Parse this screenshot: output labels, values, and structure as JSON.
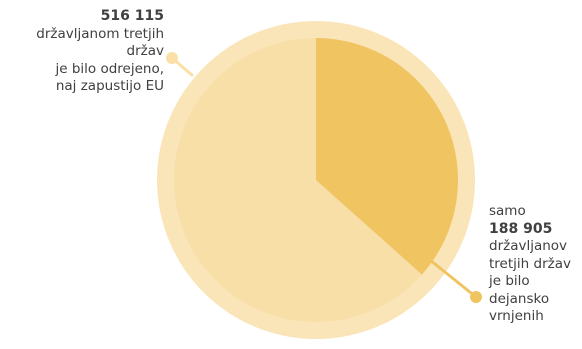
{
  "colors": {
    "outer_ring": "#fae5b8",
    "rest_slice": "#f8dfa7",
    "highlight_slice": "#efc461",
    "leader_line": "#fae0a6",
    "dot_left": "#fae0a6",
    "dot_right": "#efc461",
    "text": "#404040"
  },
  "labels": {
    "left": {
      "number": "516 115",
      "lines": [
        "državljanom tretjih",
        "držav",
        "je bilo odrejeno,",
        "naj zapustijo EU"
      ]
    },
    "right": {
      "prefix": "samo",
      "number": "188 905",
      "lines": [
        "državljanov",
        "tretjih držav",
        "je bilo",
        "dejansko",
        "vrnjenih"
      ]
    }
  },
  "chart_data": {
    "type": "pie",
    "total_label": "516 115",
    "total": 516115,
    "slices": [
      {
        "name": "",
        "value": 188905,
        "highlight": true
      },
      {
        "name": "",
        "value": 327210,
        "highlight": false
      }
    ]
  }
}
